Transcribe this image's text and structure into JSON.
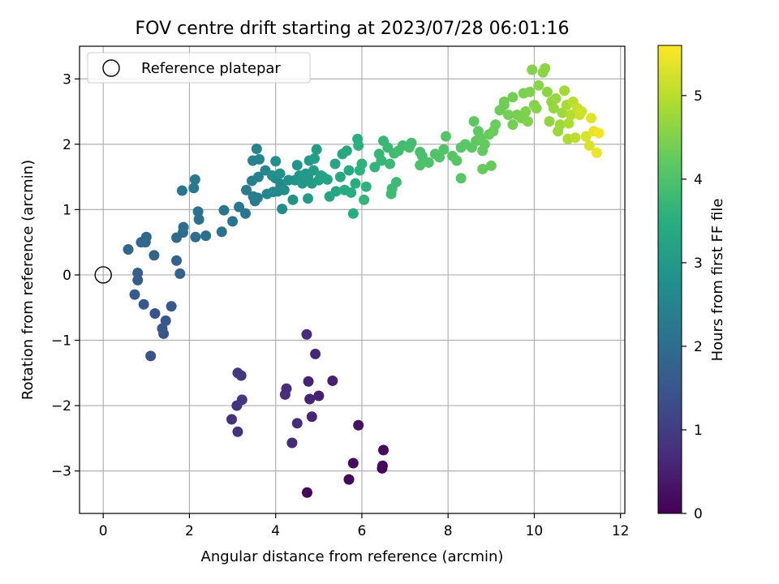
{
  "chart_data": {
    "type": "scatter",
    "title": "FOV centre drift starting at 2023/07/28 06:01:16",
    "xlabel": "Angular distance from reference (arcmin)",
    "ylabel": "Rotation from reference (arcmin)",
    "xlim": [
      -0.55,
      12.1
    ],
    "ylim": [
      -3.65,
      3.5
    ],
    "xticks": [
      0,
      2,
      4,
      6,
      8,
      10,
      12
    ],
    "yticks": [
      -3,
      -2,
      -1,
      0,
      1,
      2,
      3
    ],
    "grid": true,
    "legend": {
      "placement": "top-left",
      "entries": [
        {
          "label": "Reference platepar",
          "marker": "open-circle",
          "x": 0,
          "y": 0
        }
      ]
    },
    "colorbar": {
      "label": "Hours from first FF file",
      "range": [
        0,
        5.6
      ],
      "ticks": [
        0,
        1,
        2,
        3,
        4,
        5
      ],
      "colormap": "viridis"
    },
    "series": [
      {
        "points": [
          [
            4.73,
            -3.33,
            0.05
          ],
          [
            5.7,
            -3.13,
            0.1
          ],
          [
            6.47,
            -2.96,
            0.08
          ],
          [
            6.48,
            -2.92,
            0.12
          ],
          [
            6.5,
            -2.68,
            0.15
          ],
          [
            5.8,
            -2.88,
            0.2
          ],
          [
            5.92,
            -2.3,
            0.25
          ],
          [
            4.72,
            -0.91,
            0.7
          ],
          [
            4.92,
            -1.21,
            0.6
          ],
          [
            4.76,
            -1.63,
            0.55
          ],
          [
            5.32,
            -1.62,
            0.5
          ],
          [
            4.79,
            -1.9,
            0.55
          ],
          [
            5.0,
            -1.85,
            0.5
          ],
          [
            4.84,
            -2.17,
            0.6
          ],
          [
            4.25,
            -1.74,
            0.7
          ],
          [
            4.22,
            -1.83,
            0.75
          ],
          [
            4.5,
            -2.27,
            0.7
          ],
          [
            4.38,
            -2.57,
            0.65
          ],
          [
            3.12,
            -1.5,
            0.9
          ],
          [
            3.2,
            -1.54,
            0.9
          ],
          [
            3.22,
            -1.91,
            0.85
          ],
          [
            3.1,
            -2.0,
            0.85
          ],
          [
            2.98,
            -2.21,
            0.8
          ],
          [
            3.12,
            -2.4,
            0.8
          ],
          [
            1.1,
            -1.24,
            1.4
          ],
          [
            1.4,
            -0.9,
            1.45
          ],
          [
            1.37,
            -0.82,
            1.5
          ],
          [
            1.45,
            -0.7,
            1.5
          ],
          [
            1.58,
            -0.48,
            1.55
          ],
          [
            1.2,
            -0.59,
            1.45
          ],
          [
            0.94,
            -0.45,
            1.5
          ],
          [
            0.73,
            -0.3,
            1.55
          ],
          [
            0.8,
            -0.08,
            1.6
          ],
          [
            0.8,
            0.03,
            1.65
          ],
          [
            1.78,
            0.02,
            1.75
          ],
          [
            1.7,
            0.22,
            1.75
          ],
          [
            1.18,
            0.3,
            1.8
          ],
          [
            0.58,
            0.39,
            1.85
          ],
          [
            0.88,
            0.5,
            1.85
          ],
          [
            0.98,
            0.5,
            1.9
          ],
          [
            1.0,
            0.58,
            1.9
          ],
          [
            1.7,
            0.57,
            1.95
          ],
          [
            1.85,
            0.65,
            1.95
          ],
          [
            1.86,
            0.73,
            2.0
          ],
          [
            2.14,
            0.58,
            2.0
          ],
          [
            2.38,
            0.6,
            2.05
          ],
          [
            2.22,
            0.85,
            2.05
          ],
          [
            2.2,
            0.97,
            2.1
          ],
          [
            2.75,
            0.66,
            2.1
          ],
          [
            3.0,
            0.82,
            2.15
          ],
          [
            2.8,
            0.99,
            2.15
          ],
          [
            3.3,
            0.94,
            2.2
          ],
          [
            3.15,
            1.04,
            2.2
          ],
          [
            1.83,
            1.29,
            2.2
          ],
          [
            2.1,
            1.33,
            2.25
          ],
          [
            2.13,
            1.46,
            2.25
          ],
          [
            3.32,
            1.3,
            2.3
          ],
          [
            3.48,
            1.2,
            2.35
          ],
          [
            3.52,
            1.13,
            2.35
          ],
          [
            3.58,
            1.18,
            2.4
          ],
          [
            3.45,
            1.44,
            2.4
          ],
          [
            3.6,
            1.5,
            2.45
          ],
          [
            3.47,
            1.75,
            2.45
          ],
          [
            3.56,
            1.93,
            2.5
          ],
          [
            3.62,
            1.77,
            2.5
          ],
          [
            3.76,
            1.6,
            2.55
          ],
          [
            3.8,
            1.24,
            2.55
          ],
          [
            3.94,
            1.27,
            2.6
          ],
          [
            4.05,
            1.28,
            2.6
          ],
          [
            4.0,
            1.48,
            2.65
          ],
          [
            4.12,
            1.39,
            2.65
          ],
          [
            4.2,
            1.3,
            2.7
          ],
          [
            4.15,
            1.01,
            2.7
          ],
          [
            4.0,
            1.74,
            2.75
          ],
          [
            3.92,
            1.52,
            2.75
          ],
          [
            4.1,
            1.55,
            2.8
          ],
          [
            4.3,
            1.45,
            2.8
          ],
          [
            4.4,
            1.15,
            2.85
          ],
          [
            4.45,
            1.45,
            2.85
          ],
          [
            4.5,
            1.68,
            2.9
          ],
          [
            4.55,
            1.52,
            2.9
          ],
          [
            4.62,
            1.4,
            2.95
          ],
          [
            4.7,
            1.55,
            2.95
          ],
          [
            4.75,
            1.5,
            3.0
          ],
          [
            4.78,
            1.75,
            3.0
          ],
          [
            4.75,
            1.17,
            3.05
          ],
          [
            4.84,
            1.4,
            3.05
          ],
          [
            4.88,
            1.6,
            3.1
          ],
          [
            4.95,
            1.92,
            3.1
          ],
          [
            4.9,
            1.78,
            3.12
          ],
          [
            5.0,
            1.45,
            3.15
          ],
          [
            5.05,
            1.52,
            3.15
          ],
          [
            5.1,
            1.5,
            3.2
          ],
          [
            5.2,
            1.46,
            3.2
          ],
          [
            5.25,
            1.2,
            3.25
          ],
          [
            5.38,
            1.7,
            3.25
          ],
          [
            5.4,
            1.28,
            3.3
          ],
          [
            5.55,
            1.85,
            3.3
          ],
          [
            5.5,
            1.5,
            3.35
          ],
          [
            5.65,
            1.9,
            3.35
          ],
          [
            5.7,
            1.6,
            3.4
          ],
          [
            5.6,
            1.3,
            3.4
          ],
          [
            5.75,
            1.26,
            3.45
          ],
          [
            5.8,
            0.94,
            3.45
          ],
          [
            5.85,
            1.4,
            3.5
          ],
          [
            5.9,
            2.08,
            3.5
          ],
          [
            5.92,
            1.98,
            3.55
          ],
          [
            5.95,
            1.6,
            3.55
          ],
          [
            6.0,
            1.7,
            3.6
          ],
          [
            6.1,
            1.35,
            3.6
          ],
          [
            6.05,
            1.15,
            3.65
          ],
          [
            6.3,
            1.65,
            3.65
          ],
          [
            6.4,
            1.85,
            3.7
          ],
          [
            6.45,
            1.75,
            3.7
          ],
          [
            6.5,
            2.05,
            3.72
          ],
          [
            6.6,
            1.95,
            3.75
          ],
          [
            6.65,
            1.7,
            3.75
          ],
          [
            6.7,
            1.32,
            3.78
          ],
          [
            6.68,
            1.24,
            3.8
          ],
          [
            6.8,
            1.42,
            3.8
          ],
          [
            6.75,
            1.86,
            3.82
          ],
          [
            6.85,
            1.9,
            3.85
          ],
          [
            6.95,
            1.98,
            3.85
          ],
          [
            7.1,
            1.95,
            3.9
          ],
          [
            7.15,
            2.02,
            3.9
          ],
          [
            7.35,
            1.88,
            3.95
          ],
          [
            7.4,
            1.82,
            3.95
          ],
          [
            7.35,
            1.68,
            4.0
          ],
          [
            7.55,
            1.72,
            4.0
          ],
          [
            7.7,
            1.85,
            4.02
          ],
          [
            7.8,
            1.8,
            4.05
          ],
          [
            7.9,
            1.92,
            4.05
          ],
          [
            7.95,
            2.12,
            4.08
          ],
          [
            8.1,
            1.82,
            4.1
          ],
          [
            8.2,
            1.75,
            4.1
          ],
          [
            8.3,
            1.95,
            4.12
          ],
          [
            8.3,
            1.48,
            4.12
          ],
          [
            8.4,
            2.0,
            4.15
          ],
          [
            8.55,
            1.95,
            4.15
          ],
          [
            8.6,
            2.35,
            4.18
          ],
          [
            8.65,
            2.05,
            4.2
          ],
          [
            8.7,
            2.2,
            4.2
          ],
          [
            8.75,
            2.1,
            4.22
          ],
          [
            8.8,
            1.9,
            4.22
          ],
          [
            8.85,
            2.0,
            4.25
          ],
          [
            8.8,
            1.62,
            4.25
          ],
          [
            8.95,
            2.15,
            4.28
          ],
          [
            9.0,
            1.67,
            4.28
          ],
          [
            9.05,
            2.2,
            4.3
          ],
          [
            9.1,
            2.3,
            4.3
          ],
          [
            9.2,
            2.52,
            4.32
          ],
          [
            9.3,
            2.6,
            4.35
          ],
          [
            9.3,
            2.65,
            4.35
          ],
          [
            9.4,
            2.45,
            4.38
          ],
          [
            9.5,
            2.3,
            4.4
          ],
          [
            9.5,
            2.72,
            4.4
          ],
          [
            9.6,
            2.45,
            4.42
          ],
          [
            9.7,
            2.4,
            4.45
          ],
          [
            9.75,
            2.78,
            4.45
          ],
          [
            9.8,
            2.5,
            4.48
          ],
          [
            9.85,
            2.35,
            4.5
          ],
          [
            9.9,
            2.8,
            4.5
          ],
          [
            9.95,
            3.14,
            4.52
          ],
          [
            10.0,
            2.6,
            4.55
          ],
          [
            10.05,
            2.55,
            4.55
          ],
          [
            10.1,
            2.9,
            4.58
          ],
          [
            10.2,
            3.1,
            4.6
          ],
          [
            10.25,
            3.16,
            4.6
          ],
          [
            10.3,
            2.8,
            4.62
          ],
          [
            10.35,
            2.35,
            4.65
          ],
          [
            10.4,
            2.65,
            4.65
          ],
          [
            10.45,
            2.55,
            4.68
          ],
          [
            10.5,
            2.7,
            4.7
          ],
          [
            10.55,
            2.2,
            4.72
          ],
          [
            10.6,
            2.3,
            4.75
          ],
          [
            10.65,
            2.48,
            4.75
          ],
          [
            10.7,
            2.82,
            4.8
          ],
          [
            10.75,
            2.6,
            4.85
          ],
          [
            10.78,
            2.08,
            4.9
          ],
          [
            10.8,
            2.32,
            4.9
          ],
          [
            10.85,
            2.45,
            4.95
          ],
          [
            10.9,
            2.65,
            5.0
          ],
          [
            10.95,
            2.1,
            5.05
          ],
          [
            11.0,
            2.55,
            5.1
          ],
          [
            11.05,
            2.45,
            5.15
          ],
          [
            11.1,
            2.5,
            5.2
          ],
          [
            11.2,
            2.12,
            5.25
          ],
          [
            11.28,
            1.98,
            5.3
          ],
          [
            11.32,
            2.4,
            5.35
          ],
          [
            11.38,
            2.2,
            5.4
          ],
          [
            11.45,
            1.87,
            5.45
          ],
          [
            11.5,
            2.17,
            5.5
          ]
        ]
      }
    ]
  }
}
